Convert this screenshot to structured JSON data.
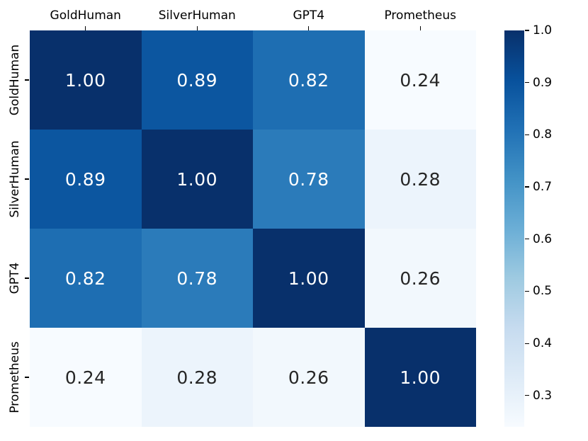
{
  "chart_data": {
    "type": "heatmap",
    "title": "",
    "xlabel": "",
    "ylabel": "",
    "categories": [
      "GoldHuman",
      "SilverHuman",
      "GPT4",
      "Prometheus"
    ],
    "matrix": [
      [
        1.0,
        0.89,
        0.82,
        0.24
      ],
      [
        0.89,
        1.0,
        0.78,
        0.28
      ],
      [
        0.82,
        0.78,
        1.0,
        0.26
      ],
      [
        0.24,
        0.28,
        0.26,
        1.0
      ]
    ],
    "value_format_decimals": 2,
    "vmin": 0.24,
    "vmax": 1.0,
    "colormap": "Blues",
    "palette_anchors": [
      "#f7fbff",
      "#deebf7",
      "#c6dbef",
      "#9ecae1",
      "#6baed6",
      "#4292c6",
      "#2171b5",
      "#08519c",
      "#08306b"
    ],
    "colorbar": {
      "position": "right",
      "ticks": [
        1.0,
        0.9,
        0.8,
        0.7,
        0.6,
        0.5,
        0.4,
        0.3
      ],
      "tick_labels": [
        "1.0",
        "0.9",
        "0.8",
        "0.7",
        "0.6",
        "0.5",
        "0.4",
        "0.3"
      ]
    },
    "annotation_color_on_light": "#262626",
    "annotation_color_on_dark": "#ffffff",
    "tick_color": "#000000",
    "grid": false,
    "legend_position": "right-colorbar"
  }
}
